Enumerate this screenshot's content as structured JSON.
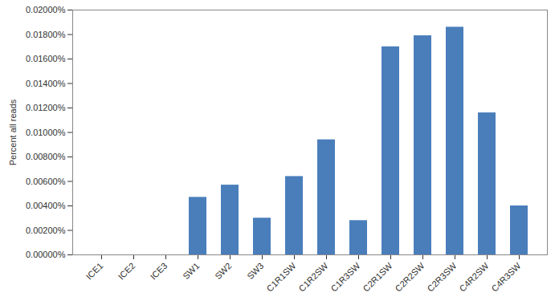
{
  "chart_data": {
    "type": "bar",
    "y_label": "Percent all reads",
    "categories": [
      "ICE1",
      "ICE2",
      "ICE3",
      "SW1",
      "SW2",
      "SW3",
      "C1R1SW",
      "C1R2SW",
      "C1R3SW",
      "C2R1SW",
      "C2R2SW",
      "C2R3SW",
      "C4R2SW",
      "C4R3SW"
    ],
    "values": [
      0,
      0,
      0,
      0.0047,
      0.0057,
      0.003,
      0.0064,
      0.0094,
      0.0028,
      0.017,
      0.0179,
      0.0186,
      0.0116,
      0.004
    ],
    "color": "#4a7ebb",
    "ylim": [
      0,
      0.02
    ],
    "yticks": [
      {
        "value": 0,
        "label": "0.00000%"
      },
      {
        "value": 0.002,
        "label": "0.00200%"
      },
      {
        "value": 0.004,
        "label": "0.00400%"
      },
      {
        "value": 0.006,
        "label": "0.00600%"
      },
      {
        "value": 0.008,
        "label": "0.00800%"
      },
      {
        "value": 0.01,
        "label": "0.01000%"
      },
      {
        "value": 0.012,
        "label": "0.01200%"
      },
      {
        "value": 0.014,
        "label": "0.01400%"
      },
      {
        "value": 0.016,
        "label": "0.01600%"
      },
      {
        "value": 0.018,
        "label": "0.01800%"
      },
      {
        "value": 0.02,
        "label": "0.02000%"
      }
    ],
    "grid": false
  }
}
